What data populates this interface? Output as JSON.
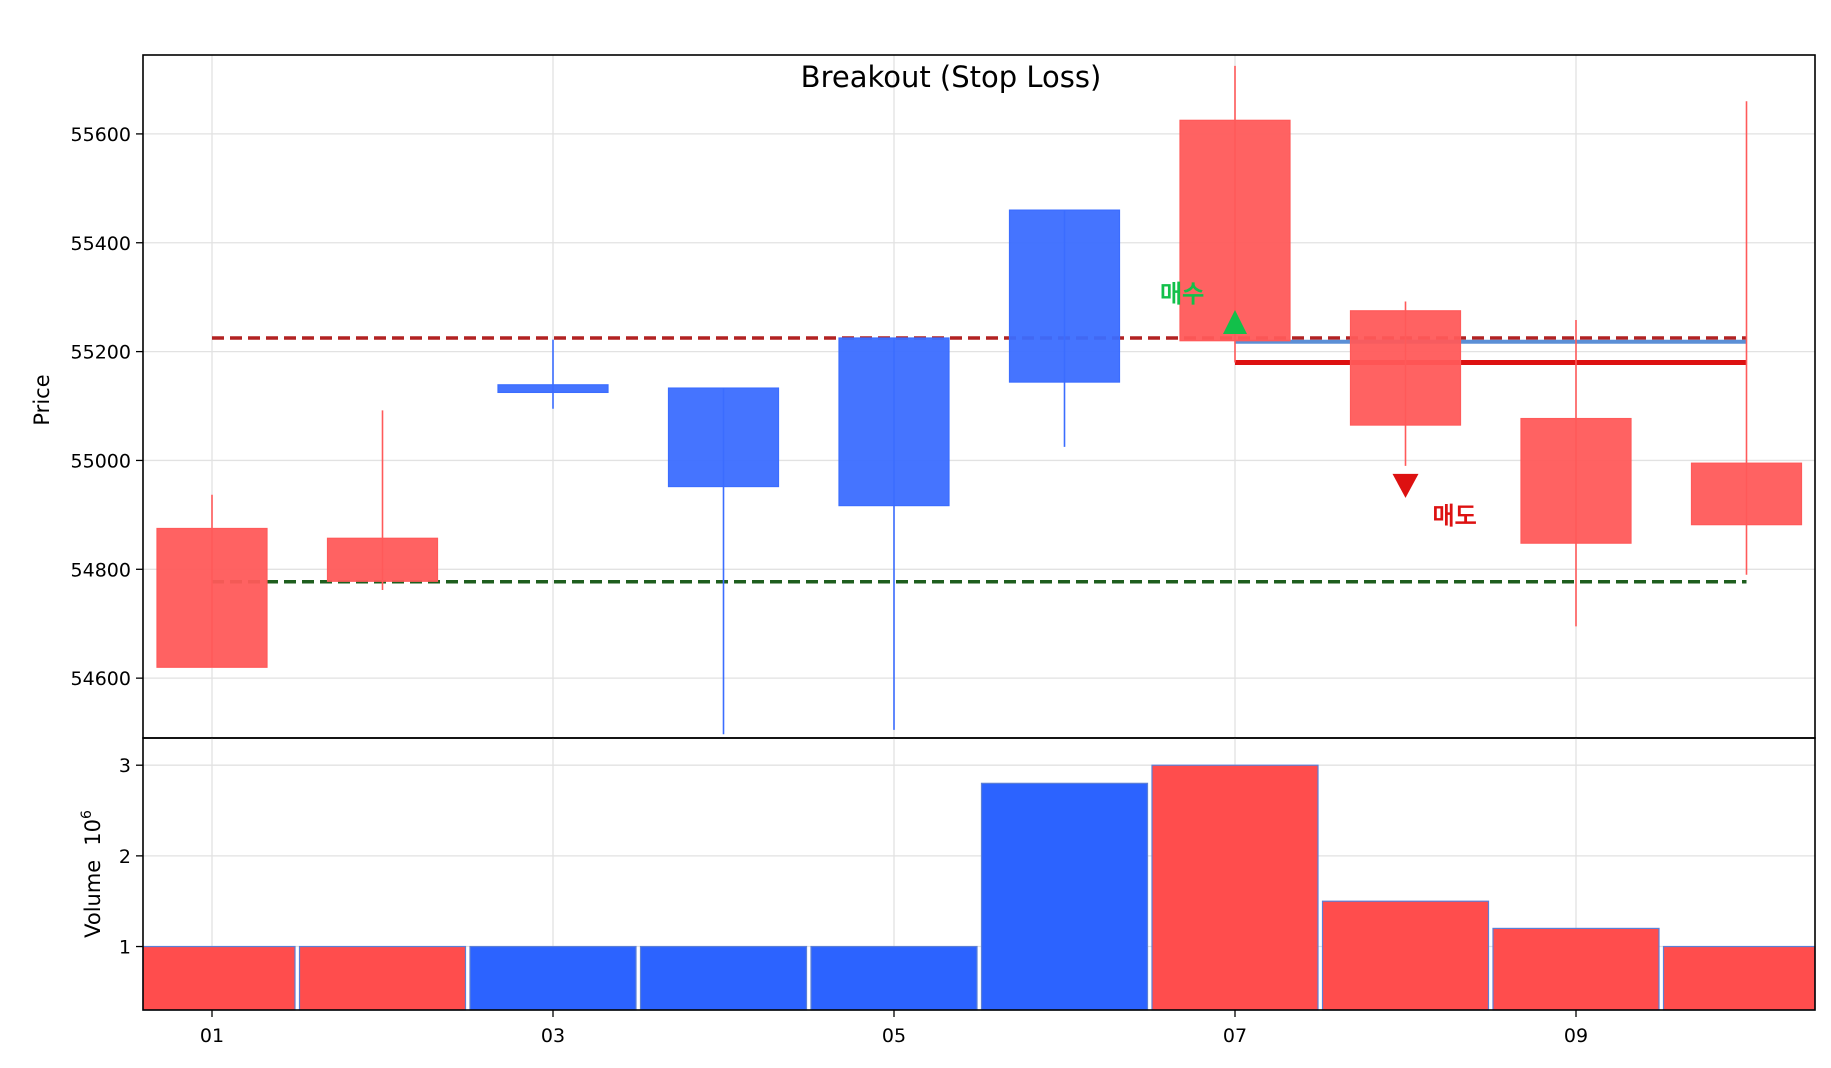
{
  "chart_data": {
    "type": "candlestick",
    "title": "Breakout (Stop Loss)",
    "price_panel": {
      "ylabel": "Price",
      "ylim": [
        54490,
        55745
      ],
      "yticks": [
        54600,
        54800,
        55000,
        55200,
        55400,
        55600
      ],
      "grid": true
    },
    "volume_panel": {
      "ylabel": "Volume",
      "ylabel_exponent": "6",
      "ylim": [
        0.3,
        3.3
      ],
      "yticks": [
        1,
        2,
        3
      ],
      "grid": true
    },
    "x": [
      "01",
      "02",
      "03",
      "04",
      "05",
      "06",
      "07",
      "08",
      "09",
      "10"
    ],
    "xticks": [
      "01",
      "03",
      "05",
      "07",
      "09"
    ],
    "candles": [
      {
        "x": "01",
        "open": 54620,
        "high": 54937,
        "low": 54620,
        "close": 54875,
        "direction": "up",
        "volume": 1.0
      },
      {
        "x": "02",
        "open": 54778,
        "high": 55092,
        "low": 54762,
        "close": 54857,
        "direction": "up",
        "volume": 1.0
      },
      {
        "x": "03",
        "open": 55139,
        "high": 55222,
        "low": 55095,
        "close": 55125,
        "direction": "down",
        "volume": 1.0
      },
      {
        "x": "04",
        "open": 55133,
        "high": 55133,
        "low": 54497,
        "close": 54952,
        "direction": "down",
        "volume": 1.0
      },
      {
        "x": "05",
        "open": 55225,
        "high": 55225,
        "low": 54505,
        "close": 54917,
        "direction": "down",
        "volume": 1.0
      },
      {
        "x": "06",
        "open": 55460,
        "high": 55460,
        "low": 55025,
        "close": 55144,
        "direction": "down",
        "volume": 2.8
      },
      {
        "x": "07",
        "open": 55220,
        "high": 55725,
        "low": 55180,
        "close": 55625,
        "direction": "up",
        "volume": 3.0
      },
      {
        "x": "08",
        "open": 55065,
        "high": 55292,
        "low": 54990,
        "close": 55275,
        "direction": "up",
        "volume": 1.5
      },
      {
        "x": "09",
        "open": 54848,
        "high": 55258,
        "low": 54695,
        "close": 55077,
        "direction": "up",
        "volume": 1.2
      },
      {
        "x": "10",
        "open": 54882,
        "high": 55660,
        "low": 54790,
        "close": 54995,
        "direction": "up",
        "volume": 1.0
      }
    ],
    "hlines": [
      {
        "y": 55225,
        "x_from": "01",
        "x_to": "10",
        "style": "dashed",
        "color": "#b22222"
      },
      {
        "y": 54777,
        "x_from": "01",
        "x_to": "10",
        "style": "dashed",
        "color": "#1e5e1e"
      },
      {
        "y": 55218,
        "x_from": "07",
        "x_to": "10",
        "style": "solid",
        "color": "#5b8fd6"
      },
      {
        "y": 55180,
        "x_from": "07",
        "x_to": "10",
        "style": "solid-thick",
        "color": "#dd1111"
      }
    ],
    "annotations": [
      {
        "text": "매수",
        "x": "07",
        "y": 55225,
        "marker": "triangle-up",
        "color": "#12c04a"
      },
      {
        "text": "매도",
        "x": "08",
        "y": 54990,
        "marker": "triangle-down",
        "color": "#dd1111"
      }
    ],
    "colors": {
      "up": "#ff5a5a",
      "down": "#3b6dff",
      "up_volume": "#ff4d4d",
      "down_volume": "#2c63ff"
    }
  }
}
